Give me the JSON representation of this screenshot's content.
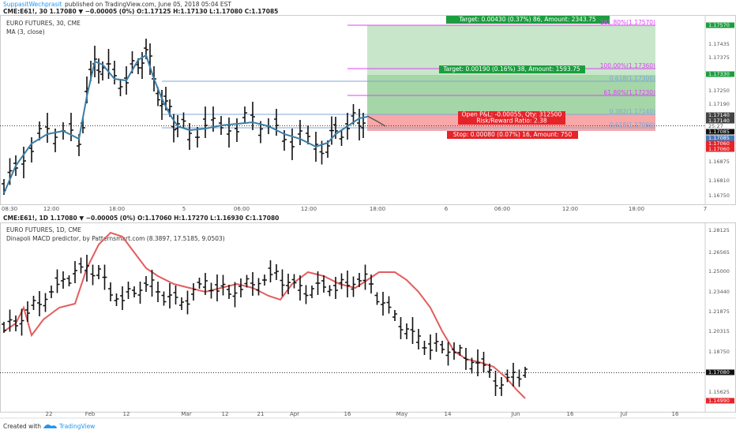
{
  "header": {
    "author": "SuppasitWechprasit",
    "published": "published on TradingView.com, June 05, 2018 05:04 EST"
  },
  "top_pane": {
    "legend": "CME:E61!, 30 1.17080 ▼ −0.00005 (0%) O:1.17125 H:1.17130 L:1.17080 C:1.17085",
    "title": "EURO FUTURES, 30, CME",
    "indicator": "MA (3, close)",
    "target_far": "Target: 0.00430 (0.37%) 86, Amount: 2343.75",
    "target_near": "Target: 0.00190 (0.16%) 38, Amount: 1593.75",
    "open_pl": "Open P&L: -0.00055, Qty: 312500",
    "risk_reward": "Risk/Reward Ratio: 2.38",
    "stop": "Stop: 0.00080 (0.07%) 16, Amount: 750",
    "fib_labels": [
      "161.80%(1.17570)",
      "100.00%(1.17360)",
      "0.618(1.17300)",
      "61.80%(1.17230)",
      "0.382(1.17140)",
      "0.618(1.17060)"
    ],
    "price_labels": [
      "1.17570",
      "1.17435",
      "1.17375",
      "1.17330",
      "1.17250",
      "1.17190",
      "1.17140",
      "1.17140",
      "25:27",
      "1.17085",
      "1.17085",
      "1.17060",
      "1.17060",
      "1.16875",
      "1.16810",
      "1.16750"
    ],
    "time_labels": [
      "08:30",
      "12:00",
      "18:00",
      "5",
      "06:00",
      "12:00",
      "18:00",
      "6",
      "06:00",
      "12:00",
      "18:00",
      "7"
    ]
  },
  "bottom_pane": {
    "legend": "CME:E61!, 1D 1.17080 ▼ −0.00005 (0%) O:1.17060 H:1.17270 L:1.16930 C:1.17080",
    "title": "EURO FUTURES, 1D, CME",
    "indicator": "Dinapoli MACD predictor, by Patternsmart.com (8.3897, 17.5185, 9.0503)",
    "price_labels": [
      "1.28125",
      "1.26565",
      "1.25000",
      "1.23440",
      "1.21875",
      "1.20315",
      "1.18750",
      "1.17080",
      "1.15625",
      "1.14990"
    ],
    "time_labels": [
      "22",
      "Feb",
      "12",
      "Mar",
      "12",
      "21",
      "Apr",
      "16",
      "May",
      "14",
      "Jun",
      "16",
      "Jul",
      "16"
    ]
  },
  "footer": {
    "created": "Created with",
    "brand": "TradingView"
  }
}
